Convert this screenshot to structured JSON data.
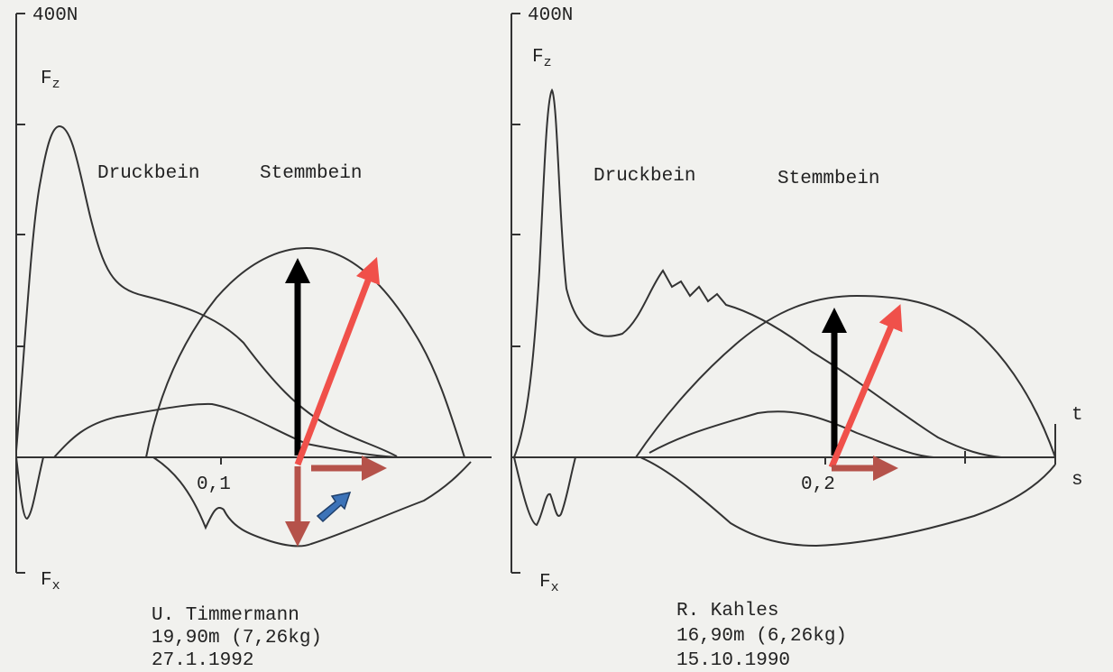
{
  "left": {
    "ymax": "400N",
    "fz": {
      "symbol": "F",
      "sub": "z"
    },
    "fx": {
      "symbol": "F",
      "sub": "x"
    },
    "labels": [
      "Druckbein",
      "Stemmbein"
    ],
    "xtick": "0,1",
    "caption": [
      "U. Timmermann",
      "19,90m (7,26kg)",
      "27.1.1992"
    ]
  },
  "right": {
    "ymax": "400N",
    "fz": {
      "symbol": "F",
      "sub": "z"
    },
    "fx": {
      "symbol": "F",
      "sub": "x"
    },
    "labels": [
      "Druckbein",
      "Stemmbein"
    ],
    "xtick": "0,2",
    "t_axis": "t",
    "s_axis": "s",
    "caption": [
      "R. Kahles",
      "16,90m (6,26kg)",
      "15.10.1990"
    ]
  }
}
